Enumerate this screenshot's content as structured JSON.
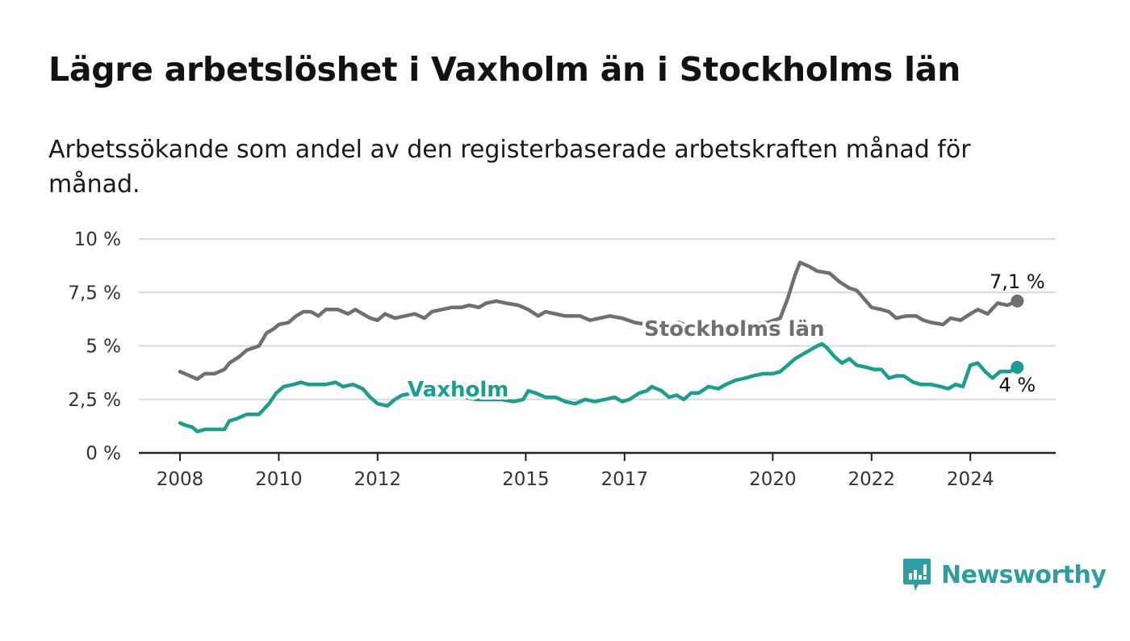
{
  "header": {
    "title": "Lägre arbetslöshet i Vaxholm än i Stockholms län",
    "subtitle": "Arbetssökande som andel av den registerbaserade arbetskraften månad för månad."
  },
  "brand": {
    "name": "Newsworthy",
    "icon": "newsworthy-logo-icon",
    "color": "#2e9ea3"
  },
  "chart_data": {
    "type": "line",
    "title": "Lägre arbetslöshet i Vaxholm än i Stockholms län",
    "subtitle": "Arbetssökande som andel av den registerbaserade arbetskraften månad för månad.",
    "xlabel": "",
    "ylabel": "",
    "ylim": [
      0,
      10
    ],
    "xlim": [
      2007.2,
      2025.8
    ],
    "y_ticks": [
      0,
      2.5,
      5,
      7.5,
      10
    ],
    "y_tick_labels": [
      "0 %",
      "2,5 %",
      "5 %",
      "7,5 %",
      "10 %"
    ],
    "x_ticks": [
      2008,
      2010,
      2012,
      2015,
      2017,
      2020,
      2022,
      2024
    ],
    "x_tick_labels": [
      "2008",
      "2010",
      "2012",
      "2015",
      "2017",
      "2020",
      "2022",
      "2024"
    ],
    "grid": true,
    "series": [
      {
        "name": "Stockholms län",
        "color": "#6f6e73",
        "end_label": "7,1 %",
        "points": [
          [
            2008.0,
            3.8
          ],
          [
            2008.2,
            3.6
          ],
          [
            2008.35,
            3.45
          ],
          [
            2008.5,
            3.7
          ],
          [
            2008.7,
            3.7
          ],
          [
            2008.9,
            3.9
          ],
          [
            2009.0,
            4.2
          ],
          [
            2009.2,
            4.5
          ],
          [
            2009.35,
            4.8
          ],
          [
            2009.6,
            5.0
          ],
          [
            2009.75,
            5.6
          ],
          [
            2009.9,
            5.8
          ],
          [
            2010.0,
            6.0
          ],
          [
            2010.2,
            6.1
          ],
          [
            2010.35,
            6.4
          ],
          [
            2010.5,
            6.6
          ],
          [
            2010.65,
            6.6
          ],
          [
            2010.8,
            6.4
          ],
          [
            2010.95,
            6.7
          ],
          [
            2011.2,
            6.7
          ],
          [
            2011.4,
            6.5
          ],
          [
            2011.55,
            6.7
          ],
          [
            2011.7,
            6.5
          ],
          [
            2011.85,
            6.3
          ],
          [
            2012.0,
            6.2
          ],
          [
            2012.15,
            6.5
          ],
          [
            2012.35,
            6.3
          ],
          [
            2012.55,
            6.4
          ],
          [
            2012.75,
            6.5
          ],
          [
            2012.95,
            6.3
          ],
          [
            2013.1,
            6.6
          ],
          [
            2013.3,
            6.7
          ],
          [
            2013.5,
            6.8
          ],
          [
            2013.7,
            6.8
          ],
          [
            2013.85,
            6.9
          ],
          [
            2014.05,
            6.8
          ],
          [
            2014.2,
            7.0
          ],
          [
            2014.4,
            7.1
          ],
          [
            2014.6,
            7.0
          ],
          [
            2014.85,
            6.9
          ],
          [
            2015.05,
            6.7
          ],
          [
            2015.25,
            6.4
          ],
          [
            2015.4,
            6.6
          ],
          [
            2015.6,
            6.5
          ],
          [
            2015.8,
            6.4
          ],
          [
            2016.1,
            6.4
          ],
          [
            2016.3,
            6.2
          ],
          [
            2016.5,
            6.3
          ],
          [
            2016.7,
            6.4
          ],
          [
            2016.95,
            6.3
          ],
          [
            2017.2,
            6.1
          ],
          [
            2017.45,
            6.0
          ],
          [
            2017.7,
            6.1
          ],
          [
            2017.9,
            6.0
          ],
          [
            2018.1,
            6.1
          ],
          [
            2018.3,
            5.9
          ],
          [
            2018.6,
            5.9
          ],
          [
            2019.0,
            5.9
          ],
          [
            2019.5,
            6.0
          ],
          [
            2019.9,
            6.1
          ],
          [
            2020.15,
            6.3
          ],
          [
            2020.3,
            7.2
          ],
          [
            2020.45,
            8.3
          ],
          [
            2020.55,
            8.9
          ],
          [
            2020.75,
            8.7
          ],
          [
            2020.9,
            8.5
          ],
          [
            2021.15,
            8.4
          ],
          [
            2021.35,
            8.0
          ],
          [
            2021.55,
            7.7
          ],
          [
            2021.7,
            7.6
          ],
          [
            2021.85,
            7.2
          ],
          [
            2022.0,
            6.8
          ],
          [
            2022.2,
            6.7
          ],
          [
            2022.35,
            6.6
          ],
          [
            2022.5,
            6.3
          ],
          [
            2022.7,
            6.4
          ],
          [
            2022.9,
            6.4
          ],
          [
            2023.05,
            6.2
          ],
          [
            2023.2,
            6.1
          ],
          [
            2023.45,
            6.0
          ],
          [
            2023.6,
            6.3
          ],
          [
            2023.8,
            6.2
          ],
          [
            2024.0,
            6.5
          ],
          [
            2024.15,
            6.7
          ],
          [
            2024.35,
            6.5
          ],
          [
            2024.55,
            7.0
          ],
          [
            2024.75,
            6.9
          ],
          [
            2024.95,
            7.1
          ]
        ]
      },
      {
        "name": "Vaxholm",
        "color": "#1a9e8f",
        "end_label": "4 %",
        "points": [
          [
            2008.0,
            1.4
          ],
          [
            2008.1,
            1.3
          ],
          [
            2008.25,
            1.2
          ],
          [
            2008.35,
            1.0
          ],
          [
            2008.5,
            1.1
          ],
          [
            2008.65,
            1.1
          ],
          [
            2008.9,
            1.1
          ],
          [
            2009.0,
            1.5
          ],
          [
            2009.15,
            1.6
          ],
          [
            2009.35,
            1.8
          ],
          [
            2009.6,
            1.8
          ],
          [
            2009.8,
            2.3
          ],
          [
            2009.95,
            2.8
          ],
          [
            2010.1,
            3.1
          ],
          [
            2010.3,
            3.2
          ],
          [
            2010.45,
            3.3
          ],
          [
            2010.6,
            3.2
          ],
          [
            2010.75,
            3.2
          ],
          [
            2010.95,
            3.2
          ],
          [
            2011.15,
            3.3
          ],
          [
            2011.3,
            3.1
          ],
          [
            2011.5,
            3.2
          ],
          [
            2011.7,
            3.0
          ],
          [
            2011.85,
            2.6
          ],
          [
            2012.0,
            2.3
          ],
          [
            2012.2,
            2.2
          ],
          [
            2012.35,
            2.5
          ],
          [
            2012.5,
            2.7
          ],
          [
            2012.75,
            2.8
          ],
          [
            2012.95,
            2.9
          ],
          [
            2013.1,
            2.7
          ],
          [
            2013.3,
            2.8
          ],
          [
            2013.5,
            2.6
          ],
          [
            2013.75,
            2.6
          ],
          [
            2014.0,
            2.5
          ],
          [
            2014.25,
            2.5
          ],
          [
            2014.5,
            2.5
          ],
          [
            2014.75,
            2.4
          ],
          [
            2014.95,
            2.5
          ],
          [
            2015.05,
            2.9
          ],
          [
            2015.2,
            2.8
          ],
          [
            2015.4,
            2.6
          ],
          [
            2015.6,
            2.6
          ],
          [
            2015.8,
            2.4
          ],
          [
            2016.0,
            2.3
          ],
          [
            2016.2,
            2.5
          ],
          [
            2016.4,
            2.4
          ],
          [
            2016.6,
            2.5
          ],
          [
            2016.8,
            2.6
          ],
          [
            2016.95,
            2.4
          ],
          [
            2017.1,
            2.5
          ],
          [
            2017.3,
            2.8
          ],
          [
            2017.45,
            2.9
          ],
          [
            2017.55,
            3.1
          ],
          [
            2017.75,
            2.9
          ],
          [
            2017.9,
            2.6
          ],
          [
            2018.05,
            2.7
          ],
          [
            2018.2,
            2.5
          ],
          [
            2018.35,
            2.8
          ],
          [
            2018.5,
            2.8
          ],
          [
            2018.7,
            3.1
          ],
          [
            2018.9,
            3.0
          ],
          [
            2019.05,
            3.2
          ],
          [
            2019.25,
            3.4
          ],
          [
            2019.45,
            3.5
          ],
          [
            2019.6,
            3.6
          ],
          [
            2019.8,
            3.7
          ],
          [
            2020.0,
            3.7
          ],
          [
            2020.15,
            3.8
          ],
          [
            2020.3,
            4.1
          ],
          [
            2020.45,
            4.4
          ],
          [
            2020.6,
            4.6
          ],
          [
            2020.75,
            4.8
          ],
          [
            2020.9,
            5.0
          ],
          [
            2021.0,
            5.1
          ],
          [
            2021.1,
            4.9
          ],
          [
            2021.25,
            4.5
          ],
          [
            2021.4,
            4.2
          ],
          [
            2021.55,
            4.4
          ],
          [
            2021.7,
            4.1
          ],
          [
            2021.9,
            4.0
          ],
          [
            2022.05,
            3.9
          ],
          [
            2022.2,
            3.9
          ],
          [
            2022.35,
            3.5
          ],
          [
            2022.5,
            3.6
          ],
          [
            2022.65,
            3.6
          ],
          [
            2022.85,
            3.3
          ],
          [
            2023.0,
            3.2
          ],
          [
            2023.2,
            3.2
          ],
          [
            2023.4,
            3.1
          ],
          [
            2023.55,
            3.0
          ],
          [
            2023.7,
            3.2
          ],
          [
            2023.85,
            3.1
          ],
          [
            2024.0,
            4.1
          ],
          [
            2024.15,
            4.2
          ],
          [
            2024.3,
            3.8
          ],
          [
            2024.45,
            3.5
          ],
          [
            2024.6,
            3.8
          ],
          [
            2024.8,
            3.8
          ],
          [
            2024.95,
            4.0
          ]
        ]
      }
    ]
  }
}
